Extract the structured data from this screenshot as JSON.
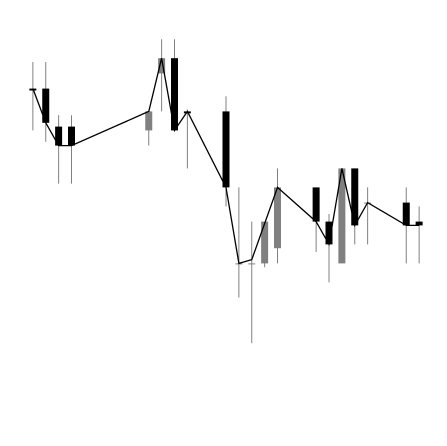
{
  "colors": {
    "up": "#808080",
    "down": "#000000",
    "wick": "#808080",
    "line": "#000000",
    "background": "#ffffff"
  },
  "chart_data": {
    "type": "candlestick",
    "title": "",
    "xlabel": "",
    "ylabel": "",
    "grid": false,
    "axes_visible": false,
    "ylim": [
      0,
      100
    ],
    "x": [
      1,
      2,
      3,
      4,
      5,
      6,
      7,
      8,
      9,
      10,
      11,
      12,
      13,
      14,
      15,
      16,
      17,
      18,
      19,
      20,
      21,
      22,
      23,
      24,
      25,
      26,
      27,
      28
    ],
    "candles": [
      {
        "x": 1,
        "open": 83,
        "high": 90,
        "low": 72,
        "close": 82.5
      },
      {
        "x": 2,
        "open": 83,
        "high": 90,
        "low": 69,
        "close": 74
      },
      {
        "x": 3,
        "open": 73,
        "high": 76,
        "low": 58,
        "close": 68
      },
      {
        "x": 4,
        "open": 73,
        "high": 76,
        "low": 58,
        "close": 68
      },
      {
        "x": 10,
        "open": 72,
        "high": 77,
        "low": 68,
        "close": 77
      },
      {
        "x": 11,
        "open": 87,
        "high": 96,
        "low": 77,
        "close": 91
      },
      {
        "x": 12,
        "open": 91,
        "high": 96,
        "low": 72,
        "close": 72
      },
      {
        "x": 13,
        "open": 77,
        "high": 77.5,
        "low": 62,
        "close": 76.5
      },
      {
        "x": 16,
        "open": 77,
        "high": 81,
        "low": 52,
        "close": 57
      },
      {
        "x": 17,
        "open": 37,
        "high": 57,
        "low": 28,
        "close": 37
      },
      {
        "x": 18,
        "open": 37,
        "high": 48,
        "low": 16,
        "close": 37
      },
      {
        "x": 19,
        "open": 37,
        "high": 47,
        "low": 36,
        "close": 48
      },
      {
        "x": 20,
        "open": 41,
        "high": 62,
        "low": 37,
        "close": 57
      },
      {
        "x": 23,
        "open": 57,
        "high": 57,
        "low": 40,
        "close": 48
      },
      {
        "x": 24,
        "open": 48,
        "high": 50,
        "low": 32,
        "close": 42
      },
      {
        "x": 25,
        "open": 37,
        "high": 62,
        "low": 37,
        "close": 62
      },
      {
        "x": 26,
        "open": 62,
        "high": 62,
        "low": 42,
        "close": 47
      },
      {
        "x": 27,
        "open": 53,
        "high": 57,
        "low": 42,
        "close": 53
      },
      {
        "x": 30,
        "open": 53,
        "high": 57,
        "low": 37,
        "close": 47
      },
      {
        "x": 31,
        "open": 48,
        "high": 52,
        "low": 37,
        "close": 47
      }
    ],
    "line": [
      {
        "x": 1,
        "y": 83
      },
      {
        "x": 2,
        "y": 74
      },
      {
        "x": 3,
        "y": 68
      },
      {
        "x": 4,
        "y": 68
      },
      {
        "x": 10,
        "y": 77
      },
      {
        "x": 11,
        "y": 91
      },
      {
        "x": 12,
        "y": 72
      },
      {
        "x": 13,
        "y": 77
      },
      {
        "x": 16,
        "y": 57
      },
      {
        "x": 17,
        "y": 37
      },
      {
        "x": 18,
        "y": 38
      },
      {
        "x": 20,
        "y": 57
      },
      {
        "x": 23,
        "y": 48
      },
      {
        "x": 24,
        "y": 42
      },
      {
        "x": 25,
        "y": 62
      },
      {
        "x": 26,
        "y": 47
      },
      {
        "x": 27,
        "y": 53
      },
      {
        "x": 30,
        "y": 47
      },
      {
        "x": 31,
        "y": 47
      }
    ],
    "xlim": [
      0,
      32
    ]
  }
}
